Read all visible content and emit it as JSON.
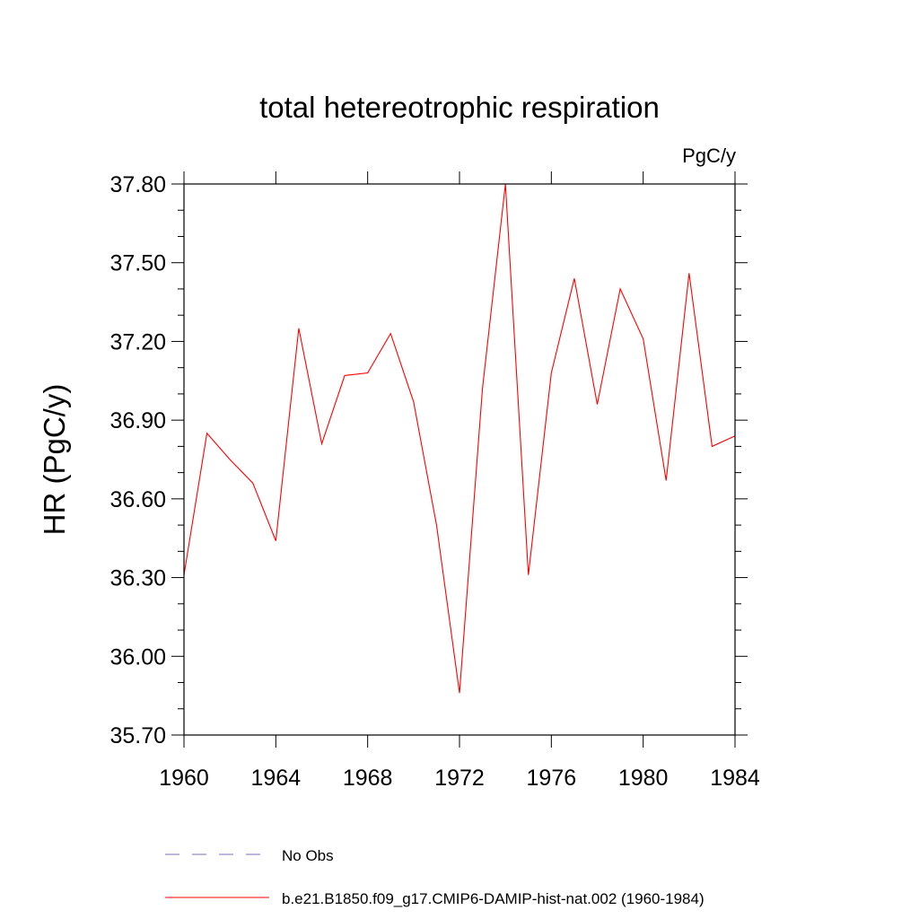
{
  "chart_data": {
    "type": "line",
    "title": "total hetereotrophic respiration",
    "units_label": "PgC/y",
    "ylabel": "HR  (PgC/y)",
    "xlabel": "",
    "xlim": [
      1960,
      1984
    ],
    "ylim": [
      35.7,
      37.8
    ],
    "x_ticks": [
      1960,
      1964,
      1968,
      1972,
      1976,
      1980,
      1984
    ],
    "x_tick_labels": [
      "1960",
      "1964",
      "1968",
      "1972",
      "1976",
      "1980",
      "1984"
    ],
    "y_ticks": [
      35.7,
      36.0,
      36.3,
      36.6,
      36.9,
      37.2,
      37.5,
      37.8
    ],
    "y_tick_labels": [
      "35.70",
      "36.00",
      "36.30",
      "36.60",
      "36.90",
      "37.20",
      "37.50",
      "37.80"
    ],
    "grid": false,
    "legend_position": "bottom",
    "series": [
      {
        "name": "b.e21.B1850.f09_g17.CMIP6-DAMIP-hist-nat.002 (1960-1984)",
        "color": "#ff0000",
        "style": "solid",
        "x": [
          1960,
          1961,
          1962,
          1963,
          1964,
          1965,
          1966,
          1967,
          1968,
          1969,
          1970,
          1971,
          1972,
          1973,
          1974,
          1975,
          1976,
          1977,
          1978,
          1979,
          1980,
          1981,
          1982,
          1983,
          1984
        ],
        "y": [
          36.31,
          36.85,
          36.75,
          36.66,
          36.44,
          37.25,
          36.81,
          37.07,
          37.08,
          37.23,
          36.97,
          36.5,
          35.86,
          37.02,
          37.8,
          36.31,
          37.08,
          37.44,
          36.96,
          37.4,
          37.21,
          36.67,
          37.46,
          36.8,
          36.84
        ]
      },
      {
        "name": "No Obs",
        "color": "#7a6fc0",
        "style": "dashed",
        "x": [],
        "y": []
      }
    ]
  }
}
